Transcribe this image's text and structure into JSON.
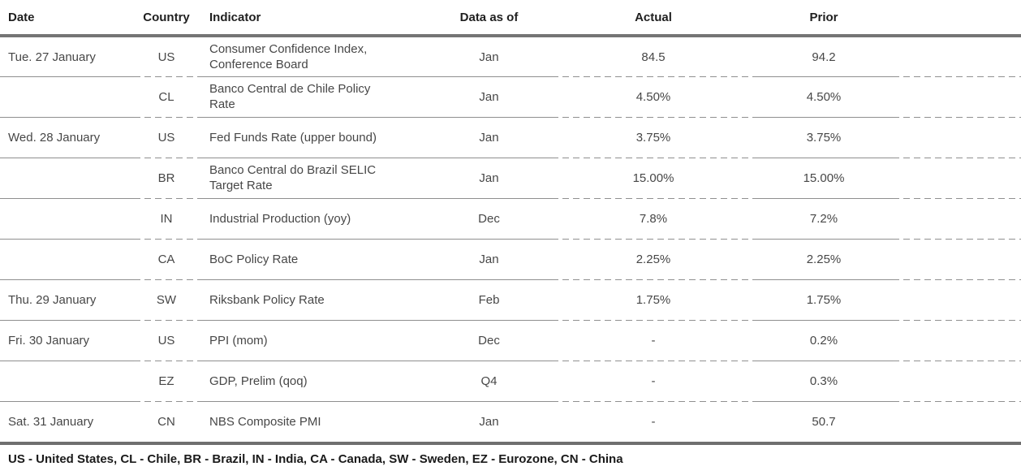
{
  "colors": {
    "background": "#ffffff",
    "header_text": "#1f1f1f",
    "body_text": "#474747",
    "thick_rule": "#757575",
    "row_rule": "#909090"
  },
  "table": {
    "headers": [
      "Date",
      "Country",
      "Indicator",
      "Data as of",
      "Actual",
      "Prior"
    ],
    "rows": [
      {
        "date": "Tue. 27 January",
        "country": "US",
        "indicator": "Consumer Confidence Index, Conference Board",
        "data_as_of": "Jan",
        "actual": "84.5",
        "prior": "94.2"
      },
      {
        "date": "",
        "country": "CL",
        "indicator": "Banco Central de Chile Policy Rate",
        "data_as_of": "Jan",
        "actual": "4.50%",
        "prior": "4.50%"
      },
      {
        "date": "Wed. 28 January",
        "country": "US",
        "indicator": "Fed Funds Rate (upper bound)",
        "data_as_of": "Jan",
        "actual": "3.75%",
        "prior": "3.75%"
      },
      {
        "date": "",
        "country": "BR",
        "indicator": "Banco Central do Brazil SELIC Target Rate",
        "data_as_of": "Jan",
        "actual": "15.00%",
        "prior": "15.00%"
      },
      {
        "date": "",
        "country": "IN",
        "indicator": "Industrial Production (yoy)",
        "data_as_of": "Dec",
        "actual": "7.8%",
        "prior": "7.2%"
      },
      {
        "date": "",
        "country": "CA",
        "indicator": "BoC Policy Rate",
        "data_as_of": "Jan",
        "actual": "2.25%",
        "prior": "2.25%"
      },
      {
        "date": "Thu. 29 January",
        "country": "SW",
        "indicator": "Riksbank Policy Rate",
        "data_as_of": "Feb",
        "actual": "1.75%",
        "prior": "1.75%"
      },
      {
        "date": "Fri. 30 January",
        "country": "US",
        "indicator": "PPI (mom)",
        "data_as_of": "Dec",
        "actual": "-",
        "prior": "0.2%"
      },
      {
        "date": "",
        "country": "EZ",
        "indicator": "GDP, Prelim (qoq)",
        "data_as_of": "Q4",
        "actual": "-",
        "prior": "0.3%"
      },
      {
        "date": "Sat. 31 January",
        "country": "CN",
        "indicator": "NBS Composite PMI",
        "data_as_of": "Jan",
        "actual": "-",
        "prior": "50.7"
      }
    ],
    "footnote": "US - United States, CL - Chile, BR - Brazil, IN - India, CA - Canada, SW - Sweden, EZ - Eurozone, CN - China"
  }
}
